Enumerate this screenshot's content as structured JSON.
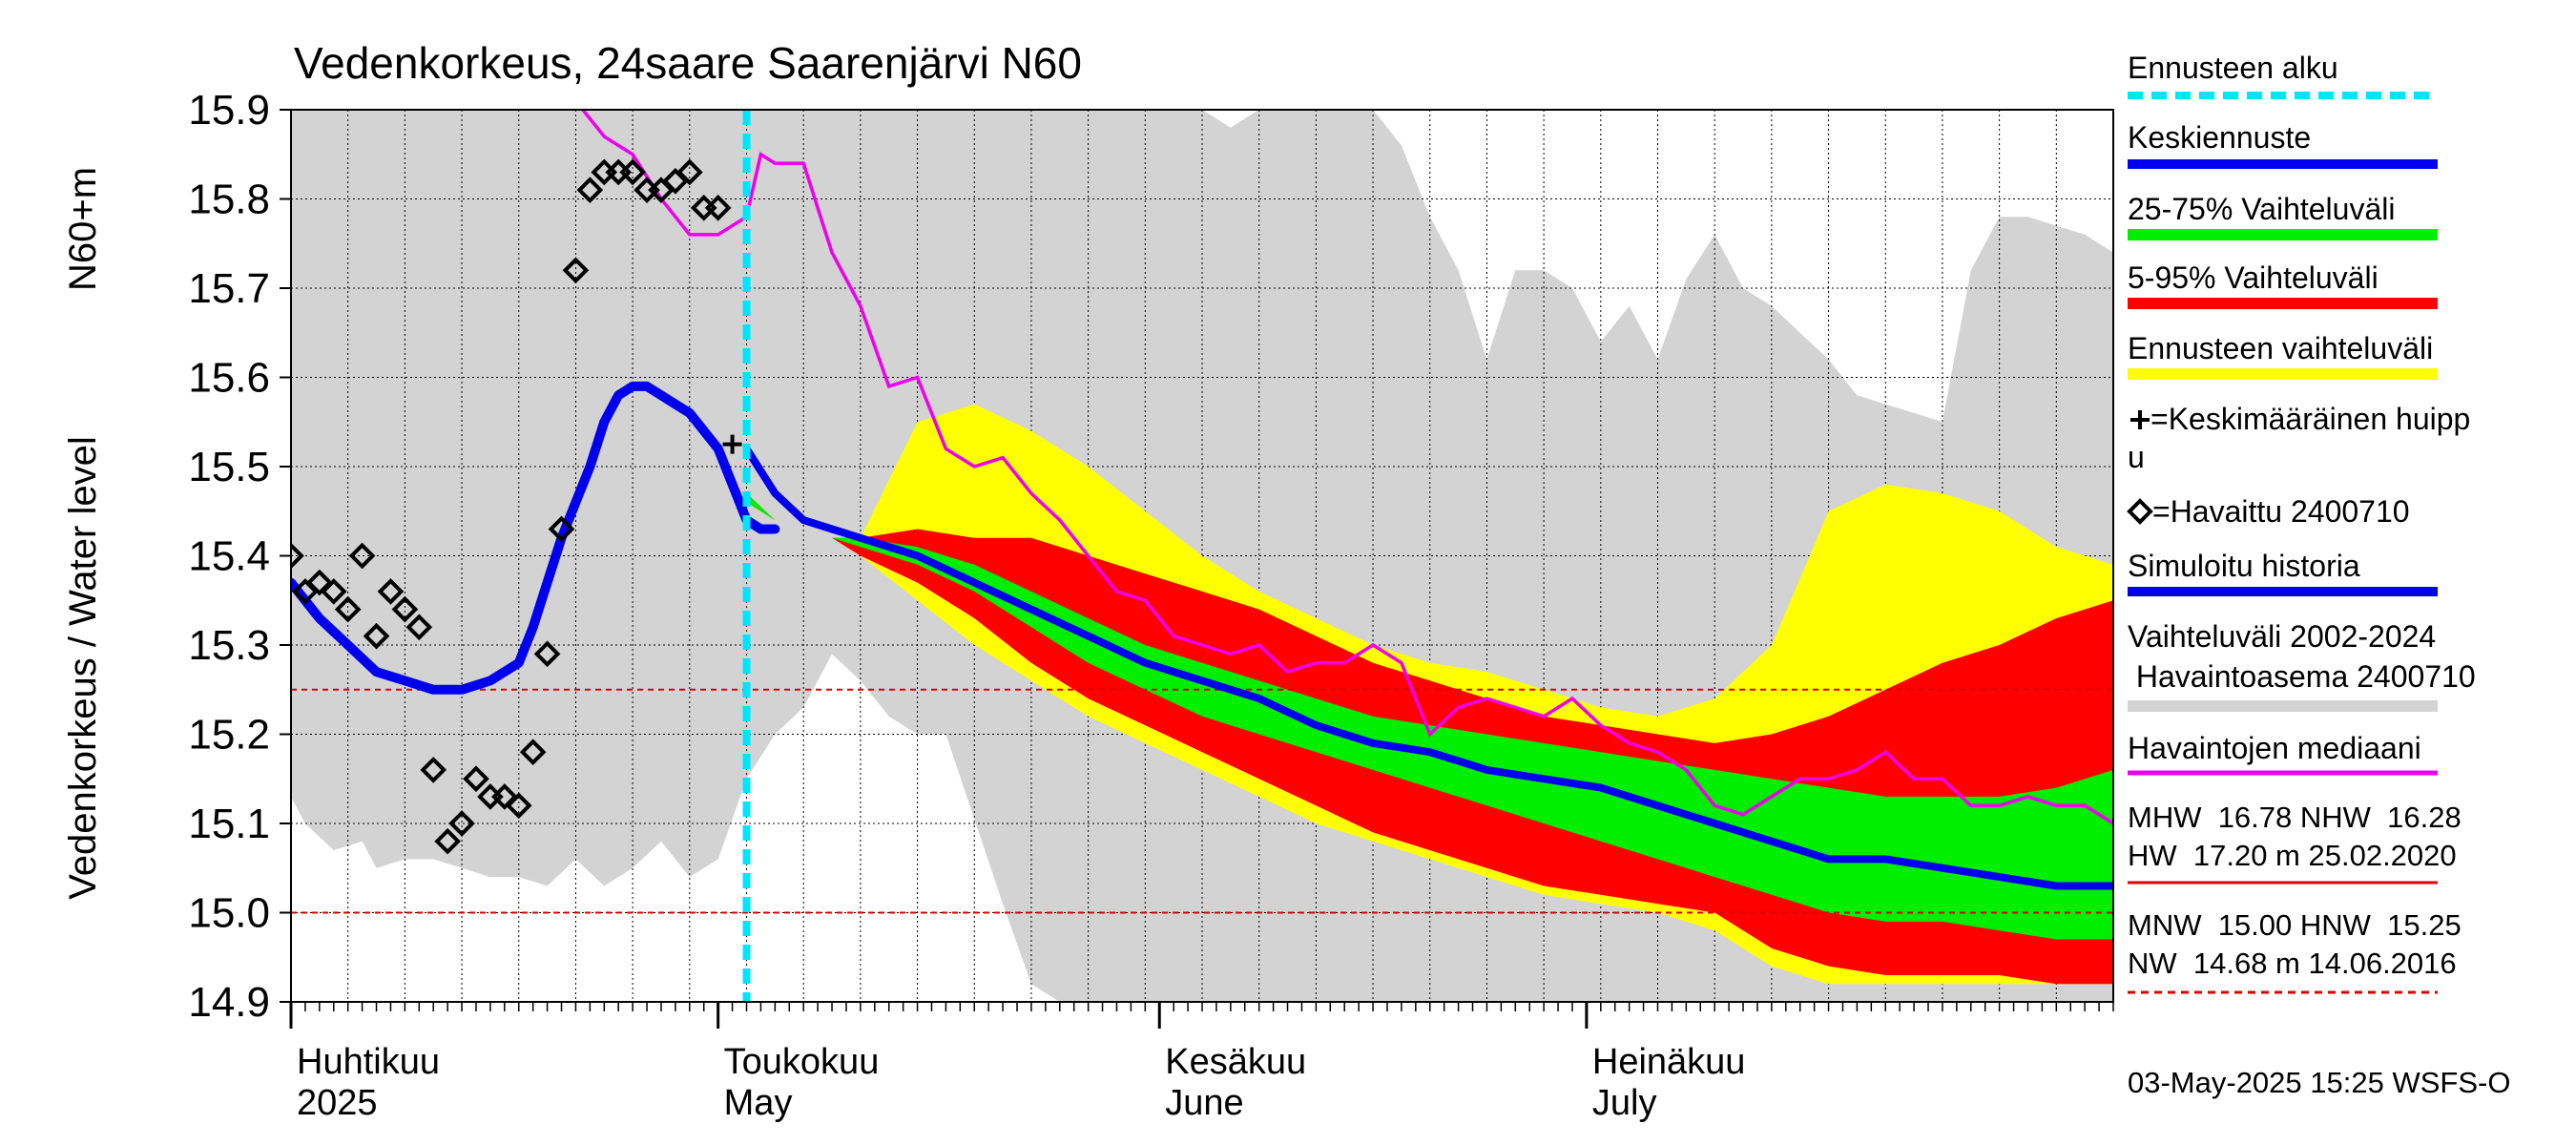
{
  "chart_data": {
    "type": "line",
    "title": "Vedenkorkeus, 24saare Saarenjärvi N60",
    "ylabel_line1": "Vedenkorkeus / Water level",
    "ylabel_line2": "N60+m",
    "ylim": [
      14.9,
      15.9
    ],
    "yticks": [
      "15.9",
      "15.8",
      "15.7",
      "15.6",
      "15.5",
      "15.4",
      "15.3",
      "15.2",
      "15.1",
      "15.0",
      "14.9"
    ],
    "xlim_days": [
      0,
      128
    ],
    "month_labels": [
      {
        "fi": "Huhtikuu",
        "en": "2025",
        "day": 0
      },
      {
        "fi": "Toukokuu",
        "en": "May",
        "day": 30
      },
      {
        "fi": "Kesäkuu",
        "en": "June",
        "day": 61
      },
      {
        "fi": "Heinäkuu",
        "en": "July",
        "day": 91
      }
    ],
    "x_axis_start_date": "2025-04-01",
    "forecast_start_day": 32,
    "reference_lines": [
      15.25,
      15.0
    ],
    "historical_range": {
      "x": [
        0,
        1,
        3,
        5,
        6,
        8,
        10,
        12,
        14,
        16,
        18,
        20,
        22,
        24,
        26,
        28,
        30,
        32,
        34,
        36,
        38,
        40,
        42,
        44,
        46,
        50,
        52,
        54,
        56,
        58,
        60,
        62,
        64,
        66,
        68,
        70,
        72,
        74,
        76,
        78,
        80,
        82,
        84,
        86,
        88,
        90,
        92,
        94,
        96,
        98,
        100,
        102,
        104,
        106,
        108,
        110,
        112,
        114,
        116,
        118,
        120,
        122,
        124,
        126,
        128
      ],
      "upper": [
        15.9,
        15.9,
        15.9,
        15.9,
        15.9,
        15.9,
        15.9,
        15.9,
        15.9,
        15.9,
        15.9,
        15.9,
        15.9,
        15.9,
        15.9,
        15.9,
        15.9,
        15.9,
        15.9,
        15.9,
        15.9,
        15.9,
        15.9,
        15.9,
        15.9,
        15.9,
        15.9,
        15.9,
        15.9,
        15.9,
        15.9,
        15.9,
        15.9,
        15.88,
        15.9,
        15.9,
        15.9,
        15.9,
        15.9,
        15.86,
        15.78,
        15.72,
        15.62,
        15.72,
        15.72,
        15.7,
        15.64,
        15.68,
        15.62,
        15.71,
        15.76,
        15.7,
        15.68,
        15.65,
        15.62,
        15.58,
        15.57,
        15.56,
        15.55,
        15.72,
        15.78,
        15.78,
        15.77,
        15.76,
        15.74
      ],
      "lower": [
        15.13,
        15.1,
        15.07,
        15.08,
        15.05,
        15.06,
        15.06,
        15.05,
        15.04,
        15.04,
        15.03,
        15.06,
        15.03,
        15.05,
        15.08,
        15.04,
        15.06,
        15.15,
        15.2,
        15.23,
        15.29,
        15.26,
        15.22,
        15.2,
        15.2,
        15.01,
        14.92,
        14.9,
        14.9,
        14.9,
        14.9,
        14.9,
        14.9,
        14.9,
        14.9,
        14.9,
        14.9,
        14.9,
        14.9,
        14.9,
        14.9,
        14.9,
        14.9,
        14.9,
        14.9,
        14.9,
        14.9,
        14.9,
        14.9,
        14.9,
        14.9,
        14.9,
        14.9,
        14.9,
        14.9,
        14.9,
        14.9,
        14.9,
        14.9,
        14.9,
        14.9,
        14.9,
        14.9,
        14.9,
        14.9
      ]
    },
    "forecast_x": [
      32,
      34,
      36,
      38,
      40,
      44,
      48,
      52,
      56,
      60,
      64,
      68,
      72,
      76,
      80,
      84,
      88,
      92,
      96,
      100,
      104,
      108,
      112,
      116,
      120,
      124,
      128
    ],
    "forecast_range": {
      "upper": [
        15.47,
        15.44,
        15.43,
        15.42,
        15.42,
        15.55,
        15.57,
        15.54,
        15.5,
        15.45,
        15.4,
        15.36,
        15.33,
        15.3,
        15.28,
        15.27,
        15.25,
        15.23,
        15.22,
        15.24,
        15.3,
        15.45,
        15.48,
        15.47,
        15.45,
        15.41,
        15.39
      ],
      "lower": [
        15.46,
        15.44,
        15.43,
        15.42,
        15.4,
        15.35,
        15.3,
        15.26,
        15.22,
        15.19,
        15.16,
        15.13,
        15.1,
        15.08,
        15.06,
        15.04,
        15.02,
        15.01,
        15.0,
        14.98,
        14.94,
        14.92,
        14.92,
        14.92,
        14.92,
        14.92,
        14.92
      ]
    },
    "p5_95": {
      "upper": [
        15.47,
        15.44,
        15.43,
        15.42,
        15.42,
        15.43,
        15.42,
        15.42,
        15.4,
        15.38,
        15.36,
        15.34,
        15.31,
        15.28,
        15.26,
        15.24,
        15.22,
        15.21,
        15.2,
        15.19,
        15.2,
        15.22,
        15.25,
        15.28,
        15.3,
        15.33,
        15.35
      ],
      "lower": [
        15.46,
        15.44,
        15.43,
        15.42,
        15.4,
        15.37,
        15.33,
        15.28,
        15.24,
        15.21,
        15.18,
        15.15,
        15.12,
        15.09,
        15.07,
        15.05,
        15.03,
        15.02,
        15.01,
        15.0,
        14.96,
        14.94,
        14.93,
        14.93,
        14.93,
        14.92,
        14.92
      ]
    },
    "p25_75": {
      "upper": [
        15.47,
        15.44,
        15.43,
        15.42,
        15.42,
        15.41,
        15.39,
        15.36,
        15.33,
        15.3,
        15.28,
        15.26,
        15.24,
        15.22,
        15.21,
        15.2,
        15.19,
        15.18,
        15.17,
        15.16,
        15.15,
        15.14,
        15.13,
        15.13,
        15.13,
        15.14,
        15.16
      ],
      "lower": [
        15.46,
        15.44,
        15.43,
        15.42,
        15.41,
        15.39,
        15.36,
        15.32,
        15.28,
        15.25,
        15.22,
        15.2,
        15.18,
        15.16,
        15.14,
        15.12,
        15.1,
        15.08,
        15.06,
        15.04,
        15.02,
        15.0,
        14.99,
        14.99,
        14.98,
        14.97,
        14.97
      ]
    },
    "mean_forecast": [
      15.52,
      15.47,
      15.44,
      15.43,
      15.42,
      15.4,
      15.37,
      15.34,
      15.31,
      15.28,
      15.26,
      15.24,
      15.21,
      15.19,
      15.18,
      15.16,
      15.15,
      15.14,
      15.12,
      15.1,
      15.08,
      15.06,
      15.06,
      15.05,
      15.04,
      15.03,
      15.03
    ],
    "simulated_history": {
      "x": [
        0,
        2,
        4,
        6,
        8,
        10,
        12,
        14,
        16,
        17,
        19,
        21,
        22,
        23,
        24,
        25,
        26,
        27,
        28,
        30,
        31,
        32,
        33,
        34
      ],
      "y": [
        15.37,
        15.33,
        15.3,
        15.27,
        15.26,
        15.25,
        15.25,
        15.26,
        15.28,
        15.32,
        15.42,
        15.5,
        15.55,
        15.58,
        15.59,
        15.59,
        15.58,
        15.57,
        15.56,
        15.52,
        15.48,
        15.44,
        15.43,
        15.43
      ]
    },
    "mean_peak": {
      "x": 31,
      "y": 15.525
    },
    "observed": {
      "x": [
        0,
        1,
        2,
        3,
        4,
        5,
        6,
        7,
        8,
        9,
        10,
        11,
        12,
        13,
        14,
        15,
        16,
        17,
        18,
        19,
        20,
        21,
        22,
        23,
        24,
        25,
        26,
        27,
        28,
        29,
        30
      ],
      "y": [
        15.4,
        15.36,
        15.37,
        15.36,
        15.34,
        15.4,
        15.31,
        15.36,
        15.34,
        15.32,
        15.16,
        15.08,
        15.1,
        15.15,
        15.13,
        15.13,
        15.12,
        15.18,
        15.29,
        15.43,
        15.72,
        15.81,
        15.83,
        15.83,
        15.83,
        15.81,
        15.81,
        15.82,
        15.83,
        15.79,
        15.79
      ]
    },
    "median_observed": {
      "x": [
        0,
        2,
        20,
        22,
        24,
        26,
        28,
        30,
        32,
        33,
        34,
        36,
        38,
        40,
        42,
        44,
        46,
        48,
        50,
        52,
        54,
        56,
        58,
        60,
        62,
        64,
        66,
        68,
        70,
        72,
        74,
        76,
        78,
        80,
        82,
        84,
        86,
        88,
        90,
        92,
        94,
        96,
        98,
        100,
        102,
        104,
        106,
        108,
        110,
        112,
        114,
        116,
        118,
        120,
        122,
        124,
        126,
        128
      ],
      "y": [
        15.95,
        15.91,
        15.91,
        15.87,
        15.85,
        15.8,
        15.76,
        15.76,
        15.78,
        15.85,
        15.84,
        15.84,
        15.74,
        15.68,
        15.59,
        15.6,
        15.52,
        15.5,
        15.51,
        15.47,
        15.44,
        15.4,
        15.36,
        15.35,
        15.31,
        15.3,
        15.29,
        15.3,
        15.27,
        15.28,
        15.28,
        15.3,
        15.28,
        15.2,
        15.23,
        15.24,
        15.23,
        15.22,
        15.24,
        15.21,
        15.19,
        15.18,
        15.16,
        15.12,
        15.11,
        15.13,
        15.15,
        15.15,
        15.16,
        15.18,
        15.15,
        15.15,
        15.12,
        15.12,
        15.13,
        15.12,
        15.12,
        15.1
      ]
    },
    "colors": {
      "historical": "#d3d3d3",
      "forecast_range": "#ffff00",
      "p5_95": "#ff0000",
      "p25_75": "#00ee00",
      "mean": "#0000ee",
      "median": "#ee00ee",
      "forecast_start": "#00e5ff",
      "reference": "#dd0000"
    }
  },
  "legend": {
    "ennusteen_alku": "Ennusteen alku",
    "keskiennuste": "Keskiennuste",
    "vaihteluvali_25_75": "25-75% Vaihteluväli",
    "vaihteluvali_5_95": "5-95% Vaihteluväli",
    "ennusteen_vaihteluvali": "Ennusteen vaihteluväli",
    "keskimaarainen_huippu_line1": "=Keskimääräinen huipp",
    "keskimaarainen_huippu_line2": "u",
    "havaittu": "=Havaittu 2400710",
    "simuloitu": "Simuloitu historia",
    "vaihteluvali_line1": "Vaihteluväli 2002-2024",
    "vaihteluvali_line2": " Havaintoasema 2400710",
    "havaintojen_mediaani": "Havaintojen mediaani",
    "stats_line1": "MHW  16.78 NHW  16.28",
    "stats_line2": "HW  17.20 m 25.02.2020",
    "stats_line3": "MNW  15.00 HNW  15.25",
    "stats_line4": "NW  14.68 m 14.06.2016"
  },
  "footer": {
    "timestamp": "03-May-2025 15:25 WSFS-O"
  }
}
